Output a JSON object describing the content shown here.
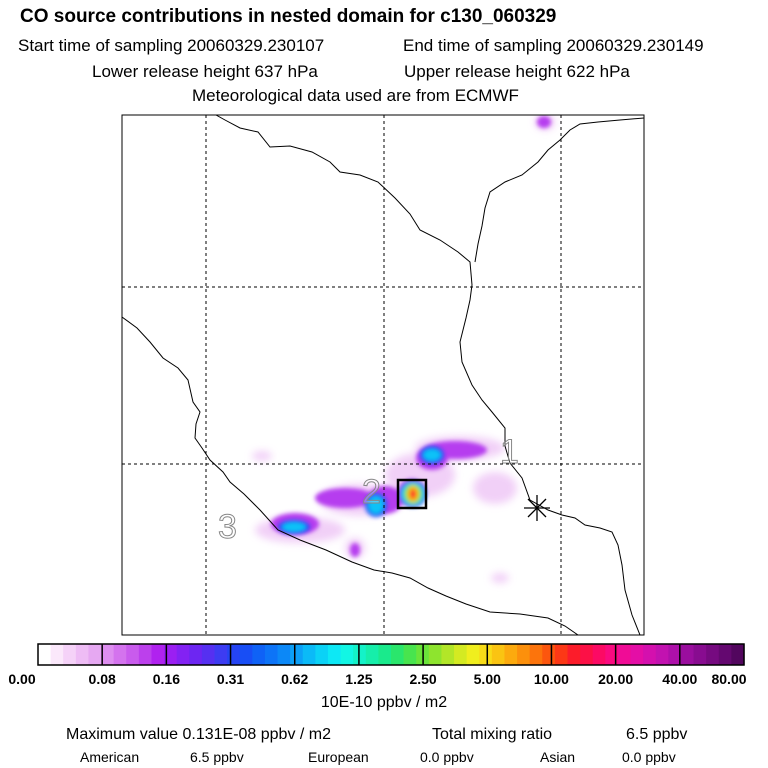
{
  "title": "CO  source contributions in nested domain for c130_060329",
  "start_label": "Start time of sampling 20060329.230107",
  "end_label": "End time of sampling 20060329.230149",
  "lower_label": "Lower release height  637 hPa",
  "upper_label": "Upper release height  622 hPa",
  "met_label": "Meteorological data used are from ECMWF",
  "map_markers": [
    "1",
    "2",
    "3"
  ],
  "colorbar": {
    "ticks": [
      "0.00",
      "0.08",
      "0.16",
      "0.31",
      "0.62",
      "1.25",
      "2.50",
      "5.00",
      "10.00",
      "20.00",
      "40.00",
      "80.00"
    ],
    "colors": [
      "#ffffff",
      "#fbe8fb",
      "#f5d2f8",
      "#eebcf5",
      "#e6a8f2",
      "#de8ef0",
      "#d473ee",
      "#c95bed",
      "#bc40ec",
      "#b022ef",
      "#9b1ff2",
      "#8322f3",
      "#6d26f2",
      "#5630f1",
      "#3d3cf2",
      "#2544f3",
      "#184ef5",
      "#0f62f6",
      "#0d74f7",
      "#0c88f7",
      "#0ca0f7",
      "#0bbaf7",
      "#0bd2f6",
      "#0de8f5",
      "#12f6e4",
      "#14f2c8",
      "#16eeaa",
      "#1aea8c",
      "#2ae66c",
      "#48e44e",
      "#6ae43a",
      "#8ee42e",
      "#b2e628",
      "#d4ea22",
      "#f0ee1e",
      "#f8dc18",
      "#fac412",
      "#fcaa0e",
      "#fc900c",
      "#fc740c",
      "#fc560e",
      "#fc3816",
      "#fc1c2a",
      "#fc1046",
      "#fc0a64",
      "#fa0a80",
      "#f00c96",
      "#e40ea6",
      "#d410ae",
      "#c212b0",
      "#ae10aa",
      "#9a0e9e",
      "#880c90",
      "#760a80",
      "#640870",
      "#52065e"
    ],
    "units": "10E-10 ppbv / m2"
  },
  "max_label": "Maximum value  0.131E-08 ppbv / m2",
  "total_label": "Total mixing ratio",
  "total_value": "6.5 ppbv",
  "regions": [
    {
      "name": "American",
      "value": "6.5 ppbv"
    },
    {
      "name": "European",
      "value": "0.0 ppbv"
    },
    {
      "name": "Asian",
      "value": "0.0 ppbv"
    }
  ]
}
